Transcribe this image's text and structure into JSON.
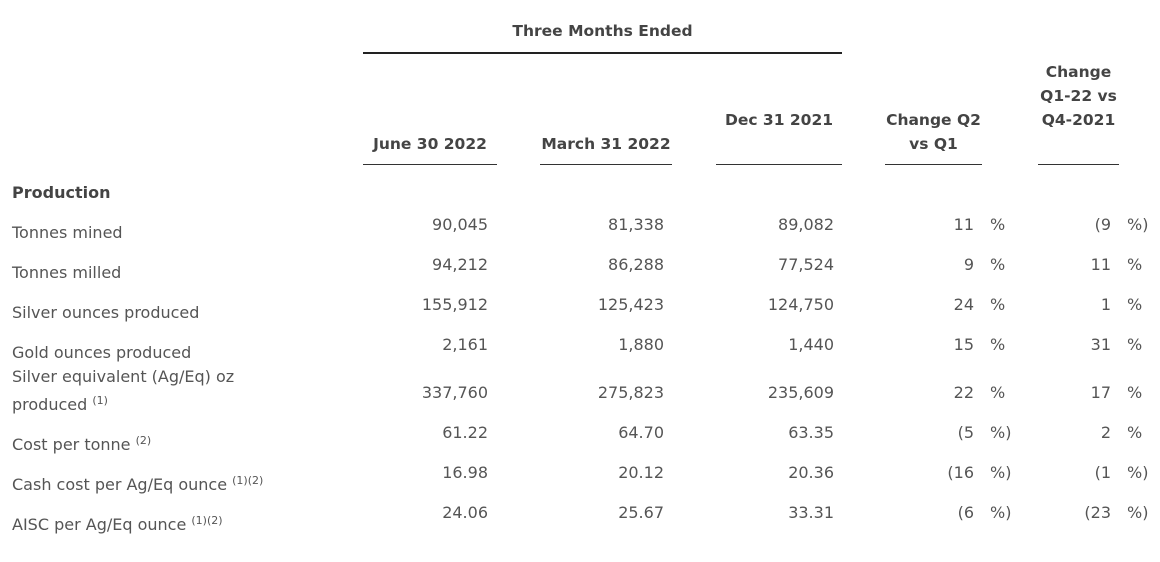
{
  "group_header": "Three Months Ended",
  "columns": [
    {
      "label": "June 30 2022"
    },
    {
      "label": "March 31 2022"
    },
    {
      "label": "Dec 31 2021"
    },
    {
      "label": "Change Q2 vs Q1"
    },
    {
      "label": "Change Q1-22 vs Q4-2021"
    }
  ],
  "section": "Production",
  "rows": [
    {
      "label": "Tonnes mined",
      "note": "",
      "jun": "90,045",
      "mar": "81,338",
      "dec": "89,082",
      "c1": "11",
      "c1u": "%",
      "c2": "(9",
      "c2u": "%)"
    },
    {
      "label": "Tonnes milled",
      "note": "",
      "jun": "94,212",
      "mar": "86,288",
      "dec": "77,524",
      "c1": "9",
      "c1u": "%",
      "c2": "11",
      "c2u": "%"
    },
    {
      "label": "Silver ounces produced",
      "note": "",
      "jun": "155,912",
      "mar": "125,423",
      "dec": "124,750",
      "c1": "24",
      "c1u": "%",
      "c2": "1",
      "c2u": "%"
    },
    {
      "label": "Gold ounces produced",
      "note": "",
      "jun": "2,161",
      "mar": "1,880",
      "dec": "1,440",
      "c1": "15",
      "c1u": "%",
      "c2": "31",
      "c2u": "%"
    },
    {
      "label": "Silver equivalent (Ag/Eq) oz",
      "label2": "produced",
      "note": "(1)",
      "jun": "337,760",
      "mar": "275,823",
      "dec": "235,609",
      "c1": "22",
      "c1u": "%",
      "c2": "17",
      "c2u": "%"
    },
    {
      "label": "Cost per tonne",
      "note": "(2)",
      "jun": "61.22",
      "mar": "64.70",
      "dec": "63.35",
      "c1": "(5",
      "c1u": "%)",
      "c2": "2",
      "c2u": "%"
    },
    {
      "label": "Cash cost per Ag/Eq ounce",
      "note": "(1)(2)",
      "jun": "16.98",
      "mar": "20.12",
      "dec": "20.36",
      "c1": "(16",
      "c1u": "%)",
      "c2": "(1",
      "c2u": "%)"
    },
    {
      "label": "AISC per Ag/Eq ounce",
      "note": "(1)(2)",
      "jun": "24.06",
      "mar": "25.67",
      "dec": "33.31",
      "c1": "(6",
      "c1u": "%)",
      "c2": "(23",
      "c2u": "%)"
    }
  ]
}
